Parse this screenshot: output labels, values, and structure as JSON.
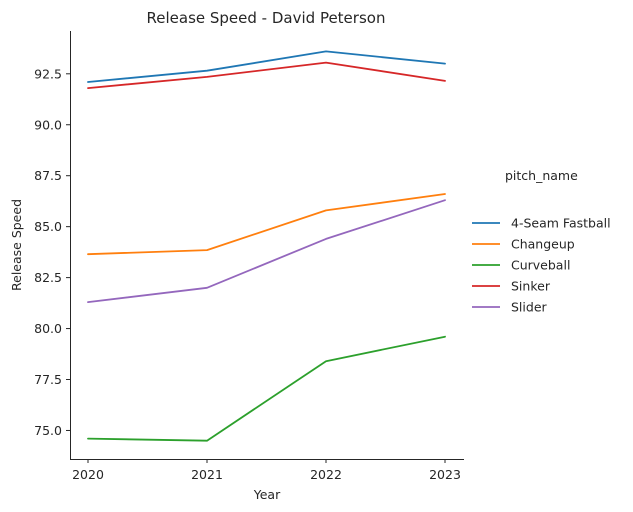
{
  "chart_data": {
    "type": "line",
    "title": "Release Speed - David Peterson",
    "xlabel": "Year",
    "ylabel": "Release Speed",
    "x": [
      2020,
      2021,
      2022,
      2023
    ],
    "x_tick_labels": [
      "2020",
      "2021",
      "2022",
      "2023"
    ],
    "ylim": [
      73.6,
      94.6
    ],
    "y_ticks": [
      75.0,
      77.5,
      80.0,
      82.5,
      85.0,
      87.5,
      90.0,
      92.5
    ],
    "y_tick_labels": [
      "75.0",
      "77.5",
      "80.0",
      "82.5",
      "85.0",
      "87.5",
      "90.0",
      "92.5"
    ],
    "grid": false,
    "legend_title": "pitch_name",
    "legend_position": "right",
    "series": [
      {
        "name": "4-Seam Fastball",
        "color": "#1f77b4",
        "values": [
          92.1,
          92.65,
          93.6,
          93.0
        ]
      },
      {
        "name": "Changeup",
        "color": "#ff7f0e",
        "values": [
          83.65,
          83.85,
          85.8,
          86.6
        ]
      },
      {
        "name": "Curveball",
        "color": "#2ca02c",
        "values": [
          74.6,
          74.5,
          78.4,
          79.6
        ]
      },
      {
        "name": "Sinker",
        "color": "#d62728",
        "values": [
          91.8,
          92.35,
          93.05,
          92.15
        ]
      },
      {
        "name": "Slider",
        "color": "#9467bd",
        "values": [
          81.3,
          82.0,
          84.4,
          86.3
        ]
      }
    ]
  }
}
